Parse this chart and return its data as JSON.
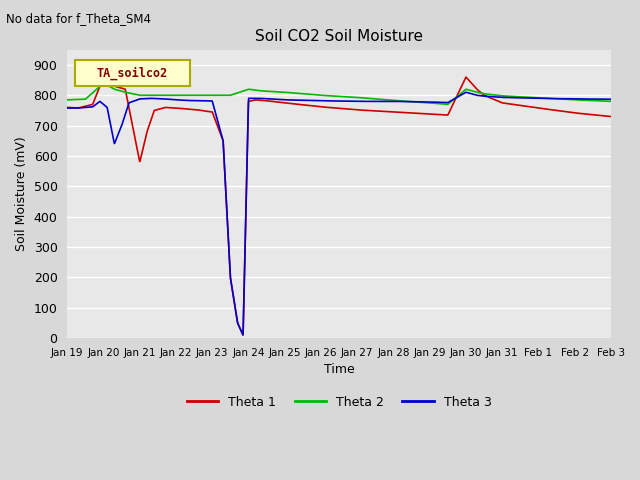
{
  "title": "Soil CO2 Soil Moisture",
  "no_data_text": "No data for f_Theta_SM4",
  "ylabel": "Soil Moisture (mV)",
  "xlabel": "Time",
  "ylim": [
    0,
    950
  ],
  "yticks": [
    0,
    100,
    200,
    300,
    400,
    500,
    600,
    700,
    800,
    900
  ],
  "plot_bg_color": "#e8e8e8",
  "fig_bg_color": "#d8d8d8",
  "legend_label": "TA_soilco2",
  "series": {
    "theta1_color": "#cc0000",
    "theta2_color": "#00bb00",
    "theta3_color": "#0000cc"
  },
  "xtick_labels": [
    "Jan 19",
    "Jan 20",
    "Jan 21",
    "Jan 22",
    "Jan 23",
    "Jan 24",
    "Jan 25",
    "Jan 26",
    "Jan 27",
    "Jan 28",
    "Jan 29",
    "Jan 30",
    "Jan 31",
    "Feb 1",
    "Feb 2",
    "Feb 3"
  ]
}
